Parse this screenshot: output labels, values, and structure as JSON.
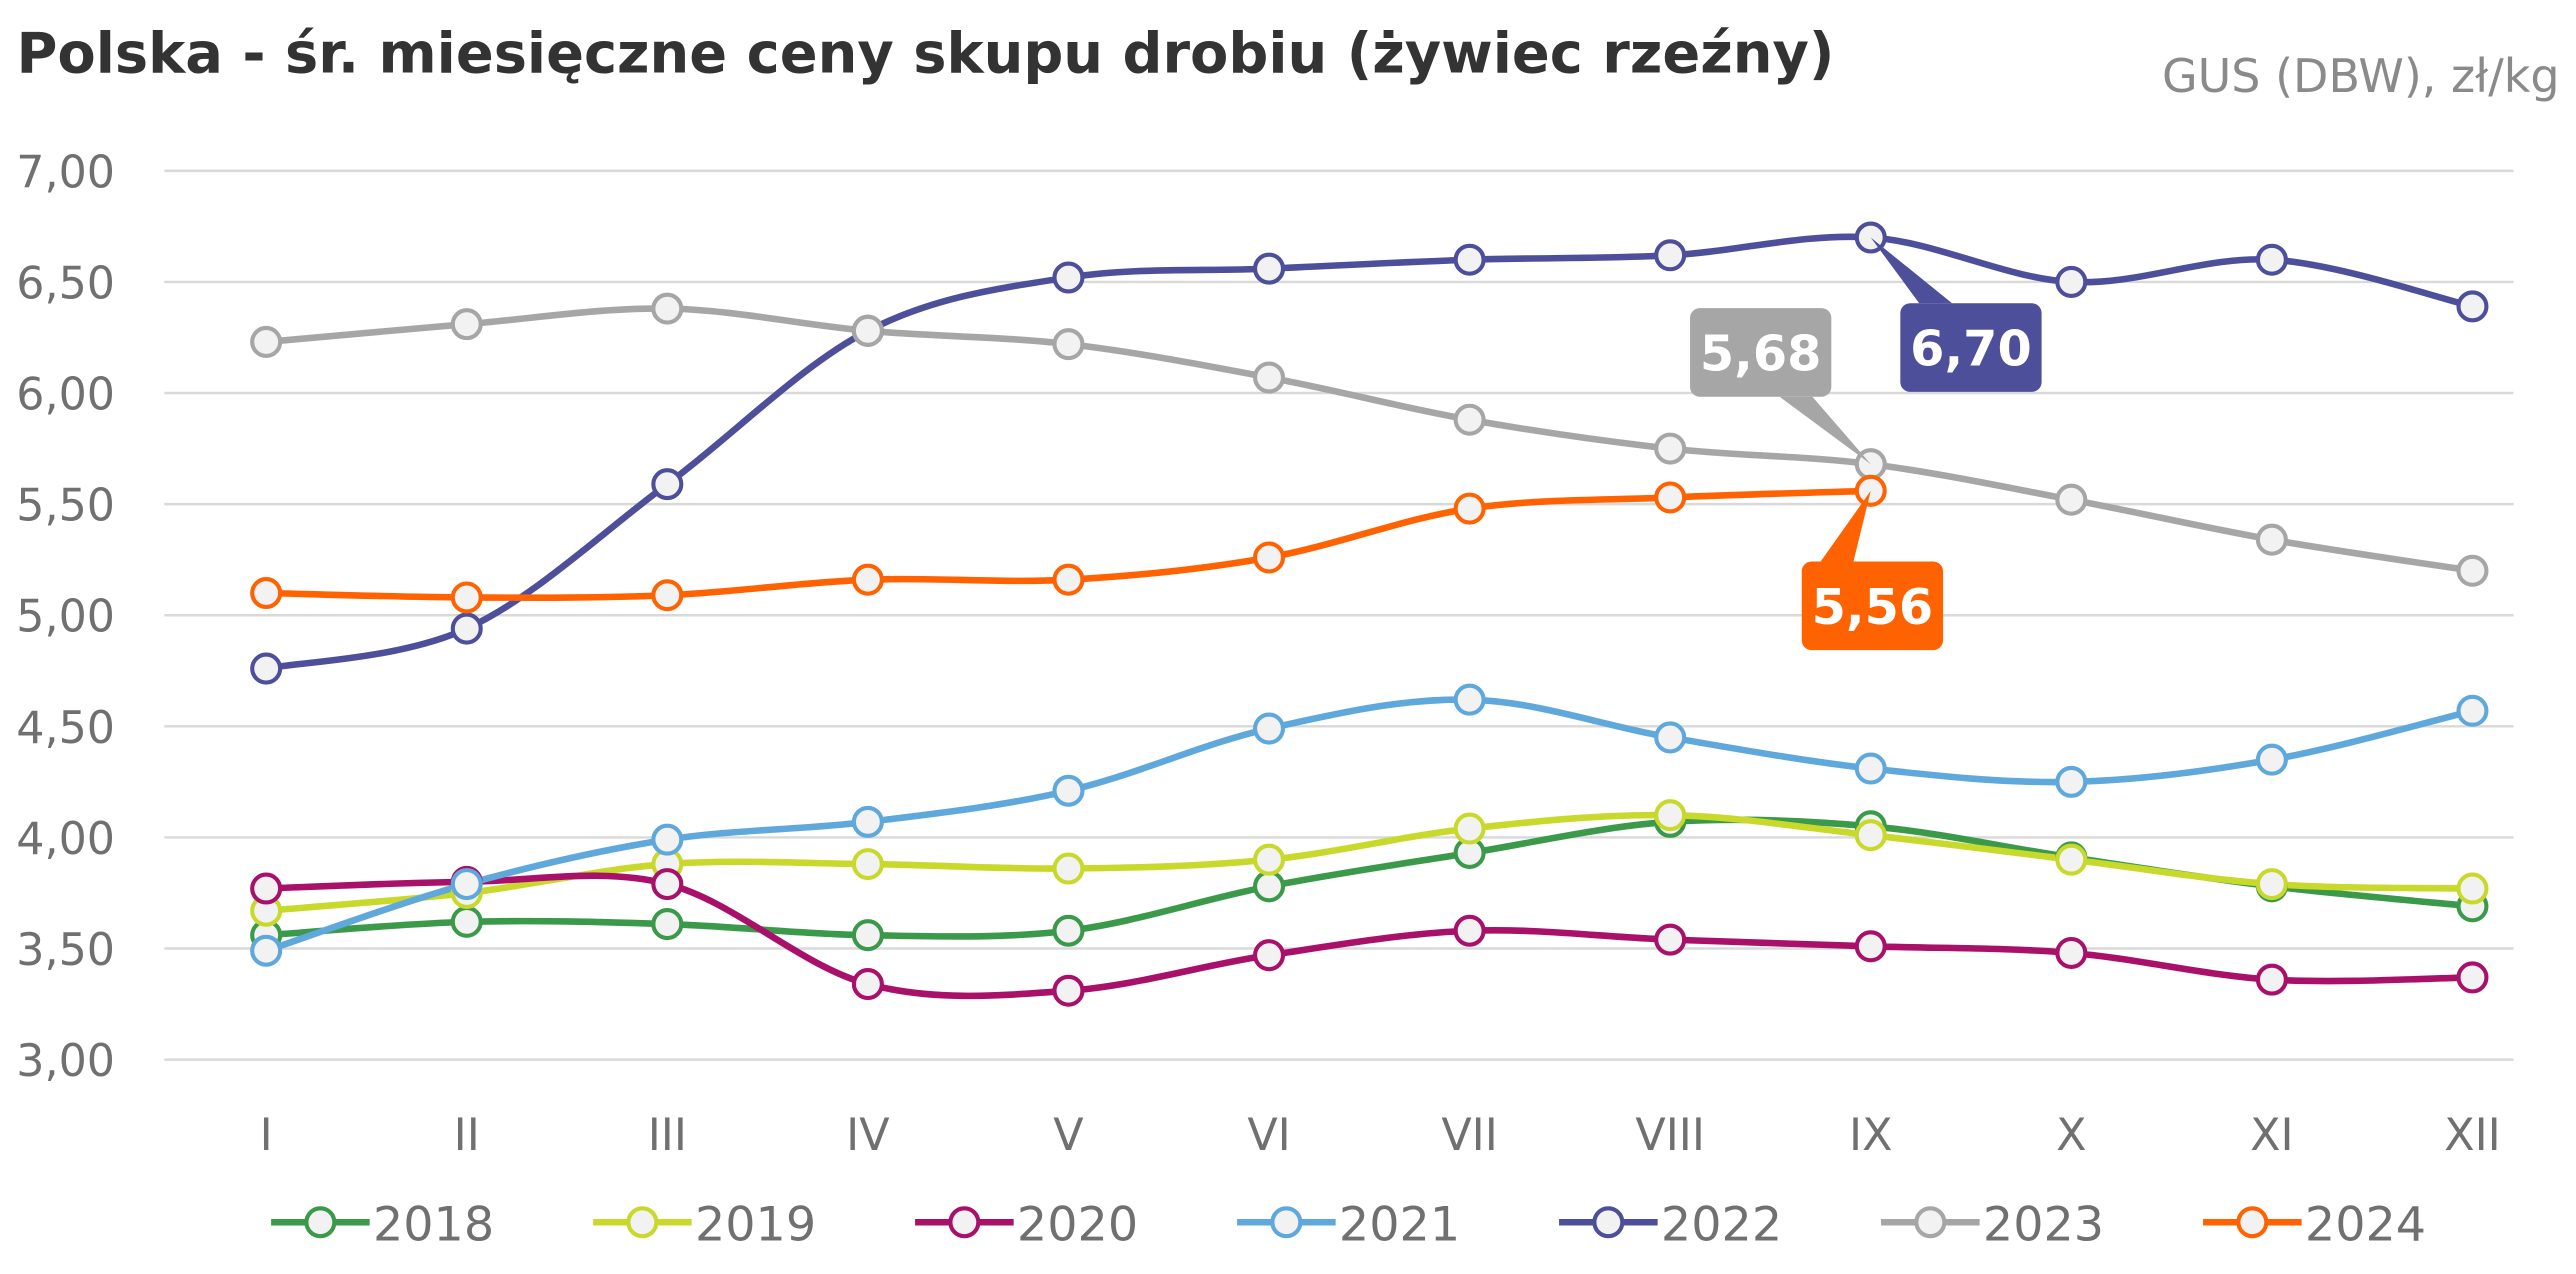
{
  "chart_data": {
    "type": "line",
    "title": "Polska - śr. miesięczne ceny skupu drobiu (żywiec rzeźny)",
    "subtitle": "GUS (DBW), zł/kg",
    "categories": [
      "I",
      "II",
      "III",
      "IV",
      "V",
      "VI",
      "VII",
      "VIII",
      "IX",
      "X",
      "XI",
      "XII"
    ],
    "ylim": [
      3,
      7
    ],
    "yticks": [
      {
        "value": 3,
        "label": "3,00"
      },
      {
        "value": 3.5,
        "label": "3,50"
      },
      {
        "value": 4,
        "label": "4,00"
      },
      {
        "value": 4.5,
        "label": "4,50"
      },
      {
        "value": 5,
        "label": "5,00"
      },
      {
        "value": 5.5,
        "label": "5,50"
      },
      {
        "value": 6,
        "label": "6,00"
      },
      {
        "value": 6.5,
        "label": "6,50"
      },
      {
        "value": 7,
        "label": "7,00"
      }
    ],
    "grid": true,
    "legend": "bottom",
    "series": [
      {
        "name": "2018",
        "color": "#3a9a4a",
        "values": [
          3.56,
          3.62,
          3.61,
          3.56,
          3.58,
          3.78,
          3.93,
          4.07,
          4.05,
          3.91,
          3.78,
          3.69
        ]
      },
      {
        "name": "2019",
        "color": "#c8d92c",
        "values": [
          3.67,
          3.75,
          3.88,
          3.88,
          3.86,
          3.9,
          4.04,
          4.1,
          4.01,
          3.9,
          3.79,
          3.77
        ]
      },
      {
        "name": "2020",
        "color": "#a8106a",
        "values": [
          3.77,
          3.8,
          3.79,
          3.34,
          3.31,
          3.47,
          3.58,
          3.54,
          3.51,
          3.48,
          3.36,
          3.37
        ]
      },
      {
        "name": "2021",
        "color": "#5fa8dc",
        "values": [
          3.49,
          3.79,
          3.99,
          4.07,
          4.21,
          4.49,
          4.62,
          4.45,
          4.31,
          4.25,
          4.35,
          4.57
        ]
      },
      {
        "name": "2022",
        "color": "#4e4f9a",
        "values": [
          4.76,
          4.94,
          5.59,
          6.28,
          6.52,
          6.56,
          6.6,
          6.62,
          6.7,
          6.5,
          6.6,
          6.39
        ],
        "value_labels": [
          null,
          null,
          null,
          null,
          null,
          null,
          null,
          null,
          "6,70",
          null,
          null,
          null
        ]
      },
      {
        "name": "2023",
        "color": "#a6a6a6",
        "values": [
          6.23,
          6.31,
          6.38,
          6.28,
          6.22,
          6.07,
          5.88,
          5.75,
          5.68,
          5.52,
          5.34,
          5.2
        ],
        "value_labels": [
          null,
          null,
          null,
          null,
          null,
          null,
          null,
          null,
          "5,68",
          null,
          null,
          null
        ]
      },
      {
        "name": "2024",
        "color": "#ff6200",
        "values": [
          5.1,
          5.08,
          5.09,
          5.16,
          5.16,
          5.26,
          5.48,
          5.53,
          5.56,
          null,
          null,
          null
        ],
        "value_labels": [
          null,
          null,
          null,
          null,
          null,
          null,
          null,
          null,
          "5,56",
          null,
          null,
          null
        ]
      }
    ]
  }
}
